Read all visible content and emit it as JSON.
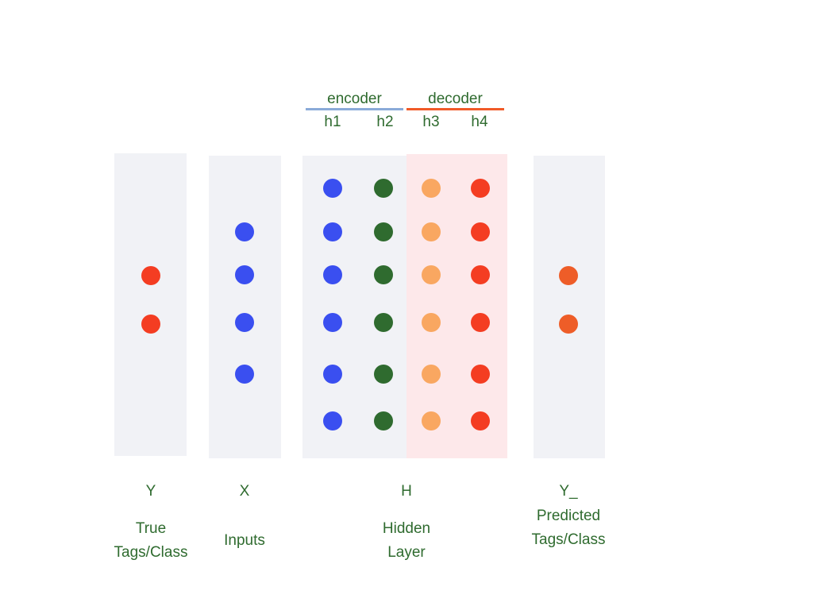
{
  "colors": {
    "panel_gray": "#f1f2f6",
    "panel_pink": "#fde8ea",
    "text": "#2f6b2f",
    "encoder_line": "#8aaad8",
    "decoder_line": "#f05a28",
    "node_blue": "#3a4ff0",
    "node_green": "#2f6b2f",
    "node_orange": "#f9a761",
    "node_red": "#f43d22",
    "node_dark_orange": "#ee5d28"
  },
  "header": {
    "encoder": "encoder",
    "decoder": "decoder",
    "h1": "h1",
    "h2": "h2",
    "h3": "h3",
    "h4": "h4"
  },
  "columns": {
    "y": {
      "symbol": "Y",
      "caption_line1": "True",
      "caption_line2": "Tags/Class",
      "node_count": 2
    },
    "x": {
      "symbol": "X",
      "caption": "Inputs",
      "node_count": 4
    },
    "h": {
      "symbol": "H",
      "caption_line1": "Hidden",
      "caption_line2": "Layer",
      "node_count_per_column": 6
    },
    "y_pred": {
      "symbol": "Y_",
      "caption_line1": "Predicted",
      "caption_line2": "Tags/Class",
      "node_count": 2
    }
  }
}
